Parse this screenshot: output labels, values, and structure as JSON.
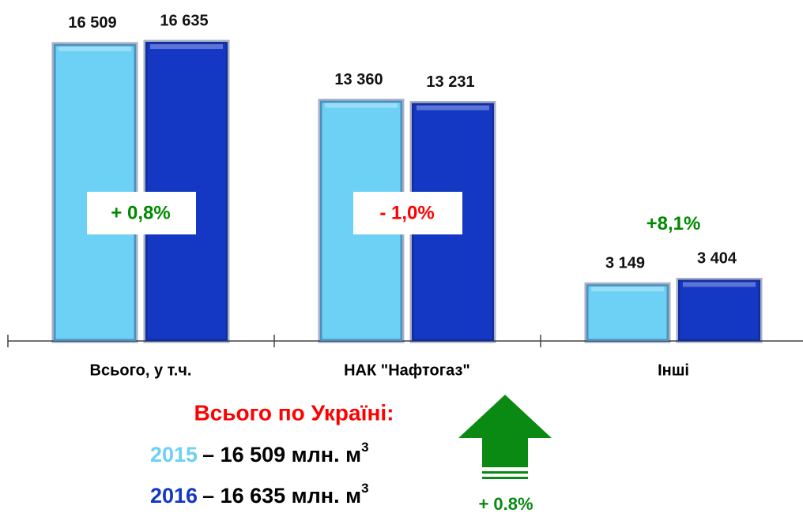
{
  "chart_data": {
    "type": "bar",
    "categories": [
      "Всього, у т.ч.",
      "НАК \"Нафтогаз\"",
      "Інші"
    ],
    "series": [
      {
        "name": "2015",
        "color": "#6dd0f5",
        "values": [
          16509,
          13360,
          3149
        ],
        "value_labels": [
          "16 509",
          "13 360",
          "3 149"
        ]
      },
      {
        "name": "2016",
        "color": "#1538c4",
        "values": [
          16635,
          13231,
          3404
        ],
        "value_labels": [
          "16 635",
          "13 231",
          "3 404"
        ]
      }
    ],
    "change_labels": [
      {
        "text": "+ 0,8%",
        "color": "#008a00",
        "boxed": true
      },
      {
        "text": "- 1,0%",
        "color": "#ff0000",
        "boxed": true
      },
      {
        "text": "+8,1%",
        "color": "#008a00",
        "boxed": false
      }
    ],
    "summary": {
      "title": "Всього по Україні:",
      "lines": [
        "– 16 509 млн. м",
        "– 16 635 млн. м"
      ],
      "unit_power": "3",
      "arrow_label": "+ 0.8%"
    }
  }
}
